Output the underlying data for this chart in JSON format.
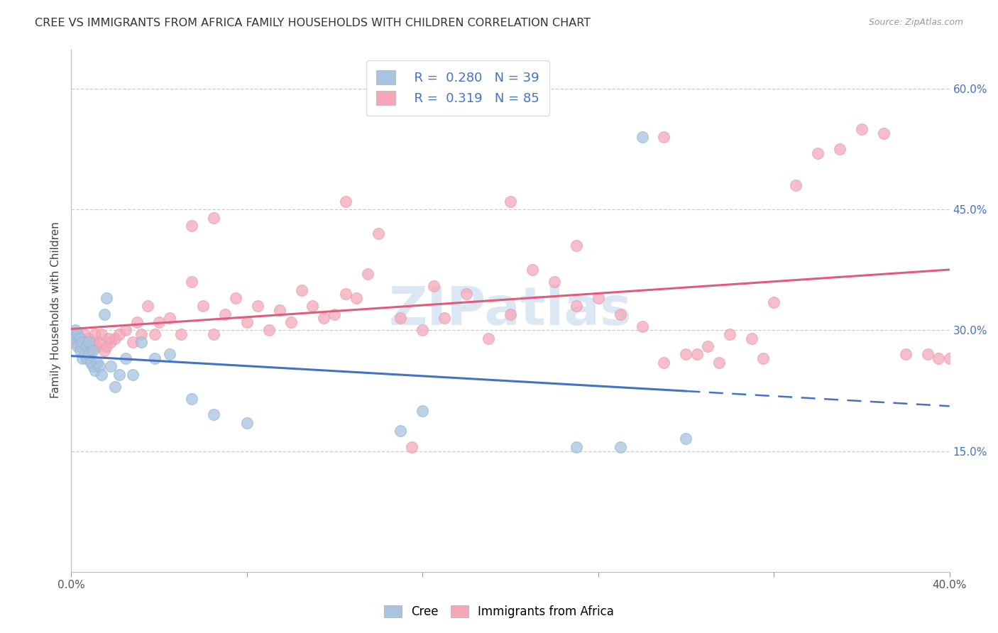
{
  "title": "CREE VS IMMIGRANTS FROM AFRICA FAMILY HOUSEHOLDS WITH CHILDREN CORRELATION CHART",
  "source": "Source: ZipAtlas.com",
  "ylabel": "Family Households with Children",
  "x_min": 0.0,
  "x_max": 0.4,
  "y_min": 0.0,
  "y_max": 0.65,
  "legend_r1": "0.280",
  "legend_n1": "39",
  "legend_r2": "0.319",
  "legend_n2": "85",
  "cree_color": "#a8c4e0",
  "africa_color": "#f4a7b9",
  "trend_cree_color": "#4472c4",
  "trend_africa_color": "#e05c7a",
  "watermark": "ZIPatlas",
  "cree_x": [
    0.001,
    0.002,
    0.003,
    0.003,
    0.004,
    0.004,
    0.005,
    0.005,
    0.006,
    0.007,
    0.007,
    0.008,
    0.008,
    0.009,
    0.01,
    0.01,
    0.011,
    0.012,
    0.013,
    0.014,
    0.015,
    0.016,
    0.018,
    0.02,
    0.022,
    0.025,
    0.028,
    0.032,
    0.038,
    0.045,
    0.055,
    0.065,
    0.08,
    0.15,
    0.16,
    0.23,
    0.25,
    0.26,
    0.28
  ],
  "cree_y": [
    0.29,
    0.3,
    0.28,
    0.295,
    0.275,
    0.29,
    0.285,
    0.265,
    0.27,
    0.28,
    0.265,
    0.27,
    0.285,
    0.26,
    0.275,
    0.255,
    0.25,
    0.26,
    0.255,
    0.245,
    0.32,
    0.34,
    0.255,
    0.23,
    0.245,
    0.265,
    0.245,
    0.285,
    0.265,
    0.27,
    0.215,
    0.195,
    0.185,
    0.175,
    0.2,
    0.155,
    0.155,
    0.54,
    0.165
  ],
  "africa_x": [
    0.001,
    0.002,
    0.003,
    0.004,
    0.005,
    0.006,
    0.007,
    0.008,
    0.009,
    0.01,
    0.011,
    0.012,
    0.013,
    0.014,
    0.015,
    0.016,
    0.017,
    0.018,
    0.02,
    0.022,
    0.025,
    0.028,
    0.03,
    0.032,
    0.035,
    0.038,
    0.04,
    0.045,
    0.05,
    0.055,
    0.06,
    0.065,
    0.07,
    0.075,
    0.08,
    0.085,
    0.09,
    0.095,
    0.1,
    0.105,
    0.11,
    0.115,
    0.12,
    0.125,
    0.13,
    0.135,
    0.14,
    0.15,
    0.16,
    0.165,
    0.17,
    0.18,
    0.19,
    0.2,
    0.21,
    0.22,
    0.23,
    0.24,
    0.25,
    0.26,
    0.27,
    0.28,
    0.285,
    0.29,
    0.295,
    0.3,
    0.31,
    0.315,
    0.32,
    0.33,
    0.34,
    0.35,
    0.36,
    0.37,
    0.38,
    0.39,
    0.395,
    0.4,
    0.055,
    0.065,
    0.2,
    0.23,
    0.125,
    0.155,
    0.27
  ],
  "africa_y": [
    0.285,
    0.295,
    0.29,
    0.28,
    0.285,
    0.295,
    0.28,
    0.29,
    0.275,
    0.285,
    0.295,
    0.28,
    0.285,
    0.295,
    0.275,
    0.28,
    0.29,
    0.285,
    0.29,
    0.295,
    0.3,
    0.285,
    0.31,
    0.295,
    0.33,
    0.295,
    0.31,
    0.315,
    0.295,
    0.36,
    0.33,
    0.295,
    0.32,
    0.34,
    0.31,
    0.33,
    0.3,
    0.325,
    0.31,
    0.35,
    0.33,
    0.315,
    0.32,
    0.345,
    0.34,
    0.37,
    0.42,
    0.315,
    0.3,
    0.355,
    0.315,
    0.345,
    0.29,
    0.32,
    0.375,
    0.36,
    0.33,
    0.34,
    0.32,
    0.305,
    0.26,
    0.27,
    0.27,
    0.28,
    0.26,
    0.295,
    0.29,
    0.265,
    0.335,
    0.48,
    0.52,
    0.525,
    0.55,
    0.545,
    0.27,
    0.27,
    0.265,
    0.265,
    0.43,
    0.44,
    0.46,
    0.405,
    0.46,
    0.155,
    0.54
  ]
}
